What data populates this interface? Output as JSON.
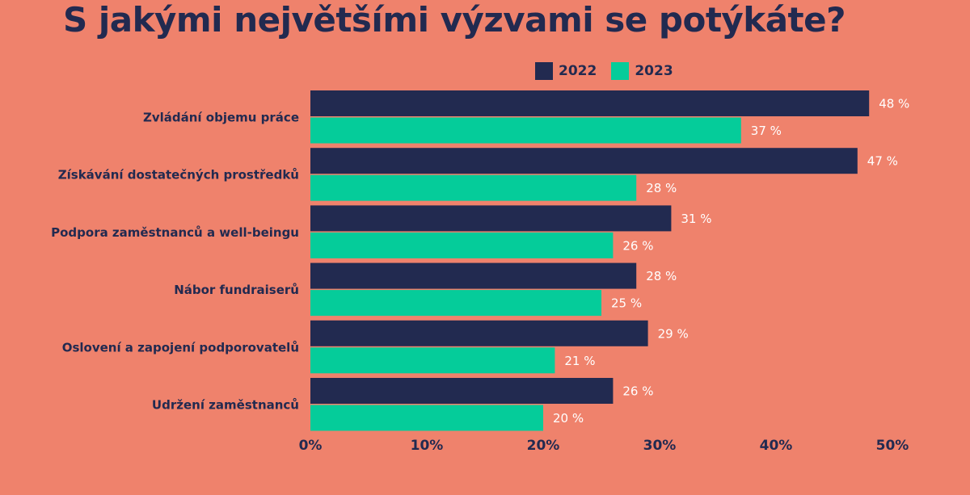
{
  "title": "S jakými největšími výzvami se potýkáte?",
  "colors": {
    "background": "#EF826C",
    "series_2022": "#222A50",
    "series_2023": "#05CC9A",
    "text": "#222A50"
  },
  "chart_data": {
    "type": "bar",
    "orientation": "horizontal",
    "title": "S jakými největšími výzvami se potýkáte?",
    "categories": [
      "Zvládání objemu práce",
      "Získávání dostatečných prostředků",
      "Podpora zaměstnanců a well-beingu",
      "Nábor fundraiserů",
      "Oslovení a zapojení podporovatelů",
      "Udržení zaměstnanců"
    ],
    "series": [
      {
        "name": "2022",
        "color": "#222A50",
        "values": [
          48,
          47,
          31,
          28,
          29,
          26
        ],
        "labels": [
          "48 %",
          "47 %",
          "31 %",
          "28 %",
          "29 %",
          "26 %"
        ]
      },
      {
        "name": "2023",
        "color": "#05CC9A",
        "values": [
          37,
          28,
          26,
          25,
          21,
          20
        ],
        "labels": [
          "37 %",
          "28 %",
          "26 %",
          "25 %",
          "21 %",
          "20 %"
        ]
      }
    ],
    "xlim": [
      0,
      50
    ],
    "ticks": [
      0,
      10,
      20,
      30,
      40,
      50
    ],
    "tick_labels": [
      "0%",
      "10%",
      "20%",
      "30%",
      "40%",
      "50%"
    ],
    "legend": "top",
    "grid": false
  }
}
